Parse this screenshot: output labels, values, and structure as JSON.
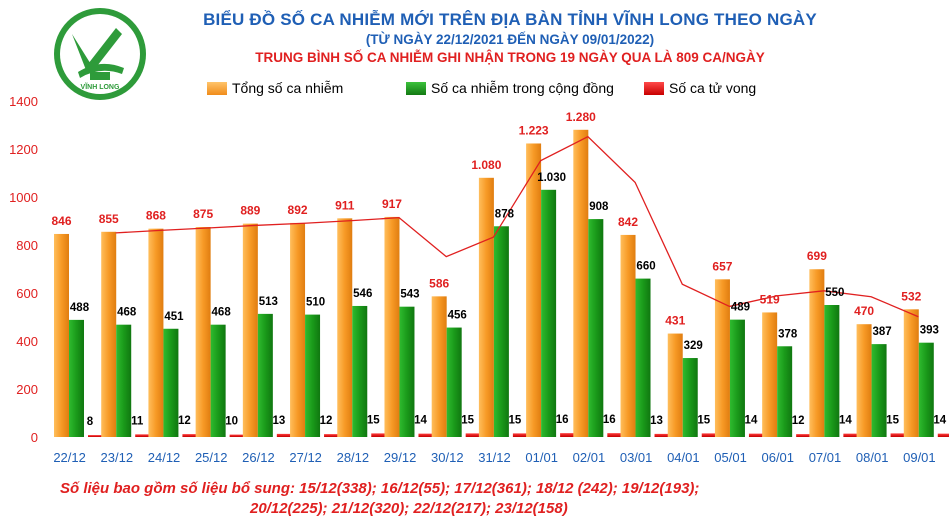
{
  "header": {
    "title": "BIỂU ĐỒ SỐ CA NHIỄM MỚI TRÊN ĐỊA BÀN TỈNH VĨNH LONG THEO NGÀY",
    "subtitle": "(TỪ NGÀY 22/12/2021 ĐẾN NGÀY 09/01/2022)",
    "average_line": "TRUNG BÌNH SỐ CA NHIỄM GHI NHẬN TRONG 19 NGÀY QUA LÀ 809 CA/NGÀY",
    "logo_text": "VĨNH LONG"
  },
  "legend": {
    "total": "Tổng số ca nhiễm",
    "community": "Số ca nhiễm trong cộng đồng",
    "deaths": "Số ca tử vong"
  },
  "footnote": {
    "line1": "Số liệu bao gồm số liệu bổ sung: 15/12(338); 16/12(55); 17/12(361); 18/12 (242);  19/12(193);",
    "line2": "20/12(225); 21/12(320); 22/12(217); 23/12(158)"
  },
  "colors": {
    "total": "#f5a234",
    "community": "#1b9e1b",
    "deaths": "#ee1111",
    "trend": "#e02020",
    "title": "#1f5fb5",
    "axis_labels": "#e02020",
    "date_labels": "#1f5fb5"
  },
  "chart_data": {
    "type": "bar",
    "categories": [
      "22/12",
      "23/12",
      "24/12",
      "25/12",
      "26/12",
      "27/12",
      "28/12",
      "29/12",
      "30/12",
      "31/12",
      "01/01",
      "02/01",
      "03/01",
      "04/01",
      "05/01",
      "06/01",
      "07/01",
      "08/01",
      "09/01"
    ],
    "series": [
      {
        "name": "Tổng số ca nhiễm",
        "values": [
          846,
          855,
          868,
          875,
          889,
          892,
          911,
          917,
          586,
          1080,
          1223,
          1280,
          842,
          431,
          657,
          519,
          699,
          470,
          532
        ]
      },
      {
        "name": "Số ca nhiễm trong cộng đồng",
        "values": [
          488,
          468,
          451,
          468,
          513,
          510,
          546,
          543,
          456,
          878,
          1030,
          908,
          660,
          329,
          489,
          378,
          550,
          387,
          393
        ]
      },
      {
        "name": "Số ca tử vong",
        "values": [
          8,
          11,
          12,
          10,
          13,
          12,
          15,
          14,
          15,
          15,
          16,
          16,
          13,
          15,
          14,
          12,
          14,
          15,
          14
        ]
      }
    ],
    "total_labels": [
      "846",
      "855",
      "868",
      "875",
      "889",
      "892",
      "911",
      "917",
      "586",
      "1.080",
      "1.223",
      "1.280",
      "842",
      "431",
      "657",
      "519",
      "699",
      "470",
      "532"
    ],
    "community_labels": [
      "488",
      "468",
      "451",
      "468",
      "513",
      "510",
      "546",
      "543",
      "456",
      "878",
      "1.030",
      "908",
      "660",
      "329",
      "489",
      "378",
      "550",
      "387",
      "393"
    ],
    "trend_line": "moving average of total cases",
    "ylim": [
      0,
      1400
    ],
    "yticks": [
      0,
      200,
      400,
      600,
      800,
      1000,
      1200,
      1400
    ],
    "grid": false,
    "legend_position": "top"
  }
}
